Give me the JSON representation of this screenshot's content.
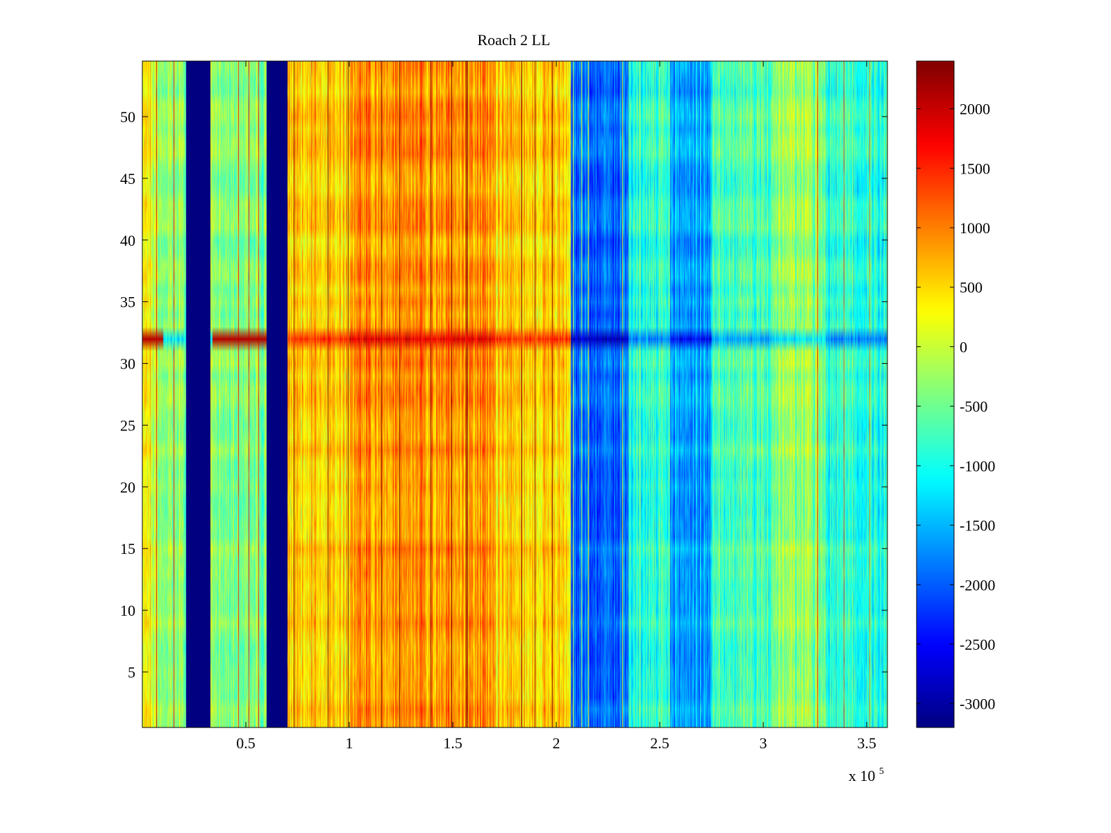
{
  "chart_data": {
    "type": "heatmap",
    "title": "Roach 2 LL",
    "xlabel": "",
    "ylabel": "",
    "x_multiplier_label": "x 10",
    "x_multiplier_exponent": "5",
    "xlim": [
      0,
      3.6
    ],
    "ylim": [
      0.5,
      54.5
    ],
    "rows": 54,
    "colormap": "jet",
    "x_ticks": [
      0.5,
      1,
      1.5,
      2,
      2.5,
      3,
      3.5
    ],
    "x_tick_labels": [
      "0.5",
      "1",
      "1.5",
      "2",
      "2.5",
      "3",
      "3.5"
    ],
    "y_ticks": [
      5,
      10,
      15,
      20,
      25,
      30,
      35,
      40,
      45,
      50
    ],
    "y_tick_labels": [
      "5",
      "10",
      "15",
      "20",
      "25",
      "30",
      "35",
      "40",
      "45",
      "50"
    ],
    "colorbar": {
      "range": [
        -3200,
        2400
      ],
      "ticks": [
        2000,
        1500,
        1000,
        500,
        0,
        -500,
        -1000,
        -1500,
        -2000,
        -2500,
        -3000
      ],
      "tick_labels": [
        "2000",
        "1500",
        "1000",
        "500",
        "0",
        "-500",
        "-1000",
        "-1500",
        "-2000",
        "-2500",
        "-3000"
      ]
    },
    "column_band_profile": [
      {
        "x_start": 0.0,
        "x_end": 0.05,
        "value": 300
      },
      {
        "x_start": 0.05,
        "x_end": 0.21,
        "value": -300
      },
      {
        "x_start": 0.21,
        "x_end": 0.33,
        "value": -3200
      },
      {
        "x_start": 0.33,
        "x_end": 0.6,
        "value": -350
      },
      {
        "x_start": 0.6,
        "x_end": 0.7,
        "value": -3200
      },
      {
        "x_start": 0.7,
        "x_end": 1.0,
        "value": 550
      },
      {
        "x_start": 1.0,
        "x_end": 1.7,
        "value": 900
      },
      {
        "x_start": 1.7,
        "x_end": 2.07,
        "value": 550
      },
      {
        "x_start": 2.07,
        "x_end": 2.35,
        "value": -1900
      },
      {
        "x_start": 2.35,
        "x_end": 2.55,
        "value": -900
      },
      {
        "x_start": 2.55,
        "x_end": 2.75,
        "value": -1600
      },
      {
        "x_start": 2.75,
        "x_end": 3.05,
        "value": -700
      },
      {
        "x_start": 3.05,
        "x_end": 3.3,
        "value": -300
      },
      {
        "x_start": 3.3,
        "x_end": 3.6,
        "value": -900
      }
    ],
    "anomalous_row": {
      "row": 32,
      "note": "row 32 strongly differs from neighbours"
    }
  }
}
